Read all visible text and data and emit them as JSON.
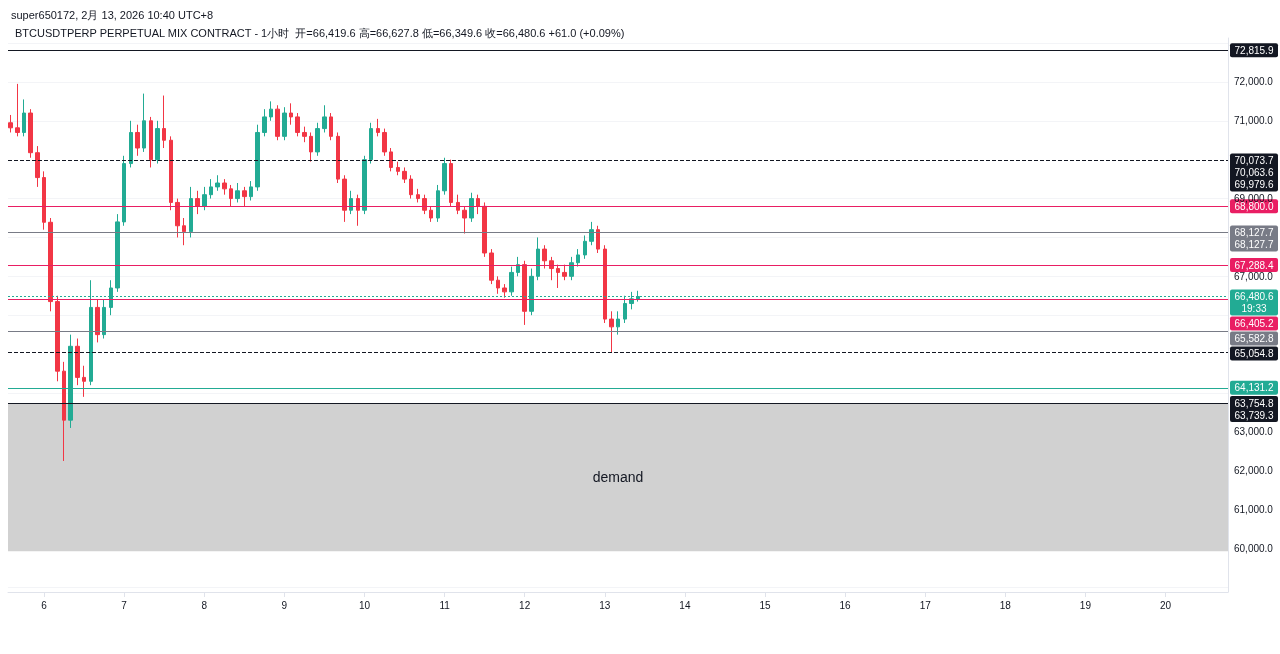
{
  "chart_data": {
    "type": "candlestick",
    "subtitle": "super650172, 2月 13, 2026 10:40 UTC+8",
    "title": "BTCUSDTPERP PERPETUAL MIX CONTRACT - 1小时  开=66,419.6 高=66,627.8 低=66,349.6 收=66,480.6 +61.0 (+0.09%)",
    "x": [
      5.5833,
      5.6667,
      5.75,
      5.8333,
      5.9167,
      6,
      6.0833,
      6.1667,
      6.25,
      6.3333,
      6.4167,
      6.5,
      6.5833,
      6.6667,
      6.75,
      6.8333,
      6.9167,
      7,
      7.0833,
      7.1667,
      7.25,
      7.3333,
      7.4167,
      7.5,
      7.5833,
      7.6667,
      7.75,
      7.8333,
      7.9167,
      8,
      8.0833,
      8.1667,
      8.25,
      8.3333,
      8.4167,
      8.5,
      8.5833,
      8.6667,
      8.75,
      8.8333,
      8.9167,
      9,
      9.0833,
      9.1667,
      9.25,
      9.3333,
      9.4167,
      9.5,
      9.5833,
      9.6667,
      9.75,
      9.8333,
      9.9167,
      10,
      10.0833,
      10.1667,
      10.25,
      10.3333,
      10.4167,
      10.5,
      10.5833,
      10.6667,
      10.75,
      10.8333,
      10.9167,
      11,
      11.0833,
      11.1667,
      11.25,
      11.3333,
      11.4167,
      11.5,
      11.5833,
      11.6667,
      11.75,
      11.8333,
      11.9167,
      12,
      12.0833,
      12.1667,
      12.25,
      12.3333,
      12.4167,
      12.5,
      12.5833,
      12.6667,
      12.75,
      12.8333,
      12.9167,
      13,
      13.0833,
      13.1667,
      13.25,
      13.3333,
      13.4167
    ],
    "ohlc": [
      [
        70950,
        71150,
        70700,
        70820
      ],
      [
        70820,
        71950,
        70600,
        70700
      ],
      [
        70700,
        71550,
        70600,
        71200
      ],
      [
        71200,
        71300,
        70050,
        70180
      ],
      [
        70180,
        70350,
        69300,
        69540
      ],
      [
        69540,
        69700,
        68200,
        68390
      ],
      [
        68390,
        68500,
        66100,
        66350
      ],
      [
        66350,
        66500,
        64300,
        64560
      ],
      [
        64560,
        64800,
        62250,
        63300
      ],
      [
        63300,
        65500,
        63100,
        65200
      ],
      [
        65200,
        65400,
        64200,
        64400
      ],
      [
        64400,
        64700,
        63900,
        64300
      ],
      [
        64300,
        66900,
        64200,
        66200
      ],
      [
        66200,
        66400,
        65300,
        65500
      ],
      [
        65500,
        66400,
        65400,
        66200
      ],
      [
        66200,
        66900,
        66000,
        66700
      ],
      [
        66700,
        68600,
        66600,
        68400
      ],
      [
        68400,
        70100,
        68300,
        69900
      ],
      [
        69900,
        71000,
        69800,
        70700
      ],
      [
        70700,
        70900,
        70100,
        70300
      ],
      [
        70300,
        71700,
        70200,
        71000
      ],
      [
        71000,
        71100,
        69800,
        70000
      ],
      [
        70000,
        71000,
        69900,
        70800
      ],
      [
        70800,
        71650,
        70300,
        70500
      ],
      [
        70500,
        70600,
        68700,
        68900
      ],
      [
        68900,
        69000,
        68000,
        68300
      ],
      [
        68300,
        68500,
        67800,
        68150
      ],
      [
        68150,
        69300,
        68000,
        69000
      ],
      [
        69000,
        69200,
        68600,
        68800
      ],
      [
        68800,
        69300,
        68700,
        69100
      ],
      [
        69100,
        69500,
        69000,
        69300
      ],
      [
        69300,
        69600,
        69200,
        69400
      ],
      [
        69400,
        69500,
        69100,
        69250
      ],
      [
        69250,
        69350,
        68800,
        69000
      ],
      [
        69000,
        69400,
        68900,
        69200
      ],
      [
        69200,
        69300,
        68800,
        69050
      ],
      [
        69050,
        69450,
        68950,
        69300
      ],
      [
        69300,
        70900,
        69200,
        70700
      ],
      [
        70700,
        71300,
        70600,
        71100
      ],
      [
        71100,
        71500,
        71000,
        71300
      ],
      [
        71300,
        71400,
        70500,
        70600
      ],
      [
        70600,
        71350,
        70500,
        71200
      ],
      [
        71200,
        71450,
        70900,
        71100
      ],
      [
        71100,
        71200,
        70600,
        70700
      ],
      [
        70700,
        70850,
        70450,
        70600
      ],
      [
        70600,
        70700,
        69950,
        70200
      ],
      [
        70200,
        70950,
        70100,
        70800
      ],
      [
        70800,
        71400,
        70700,
        71100
      ],
      [
        71100,
        71200,
        70500,
        70600
      ],
      [
        70600,
        70700,
        69400,
        69500
      ],
      [
        69500,
        69600,
        68400,
        68700
      ],
      [
        68700,
        69200,
        68600,
        69000
      ],
      [
        69000,
        69100,
        68300,
        68700
      ],
      [
        68700,
        70100,
        68600,
        70000
      ],
      [
        70000,
        70950,
        69900,
        70800
      ],
      [
        70800,
        71050,
        70600,
        70700
      ],
      [
        70700,
        70800,
        70100,
        70200
      ],
      [
        70200,
        70300,
        69700,
        69800
      ],
      [
        69800,
        69950,
        69600,
        69700
      ],
      [
        69700,
        69800,
        69400,
        69500
      ],
      [
        69500,
        69600,
        69000,
        69100
      ],
      [
        69100,
        69250,
        68900,
        69000
      ],
      [
        69000,
        69100,
        68600,
        68700
      ],
      [
        68700,
        68800,
        68400,
        68500
      ],
      [
        68500,
        69350,
        68400,
        69200
      ],
      [
        69200,
        70050,
        69100,
        69900
      ],
      [
        69900,
        70000,
        68800,
        68900
      ],
      [
        68900,
        69100,
        68600,
        68700
      ],
      [
        68700,
        68800,
        68100,
        68500
      ],
      [
        68500,
        69150,
        68400,
        69000
      ],
      [
        69000,
        69100,
        68600,
        68800
      ],
      [
        68800,
        68900,
        67500,
        67600
      ],
      [
        67600,
        67700,
        66800,
        66900
      ],
      [
        66900,
        67000,
        66550,
        66700
      ],
      [
        66700,
        66800,
        66450,
        66600
      ],
      [
        66600,
        67250,
        66500,
        67100
      ],
      [
        67100,
        67500,
        67000,
        67300
      ],
      [
        67300,
        67400,
        65750,
        66100
      ],
      [
        66100,
        67200,
        66000,
        67000
      ],
      [
        67000,
        68000,
        66900,
        67700
      ],
      [
        67700,
        67800,
        67200,
        67400
      ],
      [
        67400,
        67500,
        66900,
        67200
      ],
      [
        67200,
        67300,
        66700,
        67100
      ],
      [
        67100,
        67300,
        66900,
        67000
      ],
      [
        67000,
        67500,
        66900,
        67350
      ],
      [
        67350,
        67700,
        67250,
        67550
      ],
      [
        67550,
        68050,
        67450,
        67900
      ],
      [
        67900,
        68400,
        67800,
        68200
      ],
      [
        68200,
        68300,
        67600,
        67700
      ],
      [
        67700,
        67800,
        65800,
        65900
      ],
      [
        65900,
        66100,
        65050,
        65700
      ],
      [
        65700,
        66100,
        65500,
        65900
      ],
      [
        65900,
        66500,
        65800,
        66300
      ],
      [
        66300,
        66600,
        66150,
        66420
      ],
      [
        66419.6,
        66627.8,
        66349.6,
        66480.6
      ]
    ],
    "xlim": [
      5.55,
      20.78
    ],
    "xticks": [
      6,
      7,
      8,
      9,
      10,
      11,
      12,
      13,
      14,
      15,
      16,
      17,
      18,
      19,
      20
    ],
    "ylim": [
      58880,
      73130
    ],
    "yticks": [
      {
        "value": 59000,
        "label": null
      },
      {
        "value": 60000,
        "label": "60,000.0"
      },
      {
        "value": 61000,
        "label": "61,000.0"
      },
      {
        "value": 62000,
        "label": "62,000.0"
      },
      {
        "value": 63000,
        "label": "63,000.0"
      },
      {
        "value": 64000,
        "label": null
      },
      {
        "value": 66000,
        "label": null
      },
      {
        "value": 67000,
        "label": "67,000.0"
      },
      {
        "value": 68000,
        "label": null
      },
      {
        "value": 69000,
        "label": "69,000.0"
      },
      {
        "value": 71000,
        "label": "71,000.0"
      },
      {
        "value": 72000,
        "label": "72,000.0"
      },
      {
        "value": 73000,
        "label": null
      }
    ],
    "ref_lines": [
      {
        "axis": "y",
        "value": 72815.9,
        "label": "72,815.9",
        "color": "#131722",
        "line_style": "solid"
      },
      {
        "axis": "y",
        "value": 69979.6,
        "label": "70,073.7\n70,063.6\n69,979.6",
        "color": "#131722",
        "line_style": "dashed"
      },
      {
        "axis": "y",
        "value": 68800,
        "label": "68,800.0",
        "color": "#e91e63",
        "line_style": "solid"
      },
      {
        "axis": "y",
        "value": 68127.7,
        "label": "68,127.7\n68,127.7",
        "color": "#787b86",
        "line_style": "solid"
      },
      {
        "axis": "y",
        "value": 67288.4,
        "label": "67,288.4",
        "color": "#e91e63",
        "line_style": "solid"
      },
      {
        "axis": "y",
        "value": 66480.6,
        "label": "66,480.6\n19:33",
        "color": "#22ab94",
        "line_style": "dotted"
      },
      {
        "axis": "y",
        "value": 66405.2,
        "label": "66,405.2",
        "color": "#e91e63",
        "line_style": "solid"
      },
      {
        "axis": "y",
        "value": 65582.8,
        "label": "65,582.8",
        "color": "#787b86",
        "line_style": "solid"
      },
      {
        "axis": "y",
        "value": 65054.8,
        "label": "65,054.8",
        "color": "#131722",
        "line_style": "dashed"
      },
      {
        "axis": "y",
        "value": 64131.2,
        "label": "64,131.2",
        "color": "#22ab94",
        "line_style": "solid"
      },
      {
        "axis": "y",
        "value": 63739.3,
        "label": "63,754.8\n63,739.3",
        "color": "#131722",
        "line_style": "solid"
      }
    ],
    "bands": [
      {
        "axis": "y",
        "from": 59930,
        "to": 63739.3,
        "label": "demand",
        "color": "#d1d1d1"
      }
    ],
    "grid": "y"
  }
}
